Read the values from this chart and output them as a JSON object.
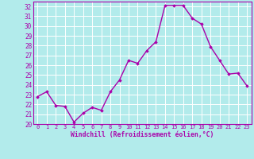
{
  "x": [
    0,
    1,
    2,
    3,
    4,
    5,
    6,
    7,
    8,
    9,
    10,
    11,
    12,
    13,
    14,
    15,
    16,
    17,
    18,
    19,
    20,
    21,
    22,
    23
  ],
  "y": [
    22.8,
    23.3,
    21.9,
    21.8,
    20.2,
    21.1,
    21.7,
    21.4,
    23.3,
    24.5,
    26.5,
    26.2,
    27.5,
    28.4,
    32.1,
    32.1,
    32.1,
    30.8,
    30.2,
    27.9,
    26.5,
    25.1,
    25.2,
    23.9
  ],
  "line_color": "#aa00aa",
  "marker": "D",
  "marker_size": 1.8,
  "bg_color": "#b2ebeb",
  "grid_color": "#c0e0e0",
  "xlabel": "Windchill (Refroidissement éolien,°C)",
  "xlabel_color": "#aa00aa",
  "tick_color": "#aa00aa",
  "ylim": [
    20,
    32.5
  ],
  "xlim": [
    -0.5,
    23.5
  ],
  "yticks": [
    20,
    21,
    22,
    23,
    24,
    25,
    26,
    27,
    28,
    29,
    30,
    31,
    32
  ],
  "xticks": [
    0,
    1,
    2,
    3,
    4,
    5,
    6,
    7,
    8,
    9,
    10,
    11,
    12,
    13,
    14,
    15,
    16,
    17,
    18,
    19,
    20,
    21,
    22,
    23
  ],
  "line_width": 1.0,
  "spine_color": "#aa00aa"
}
